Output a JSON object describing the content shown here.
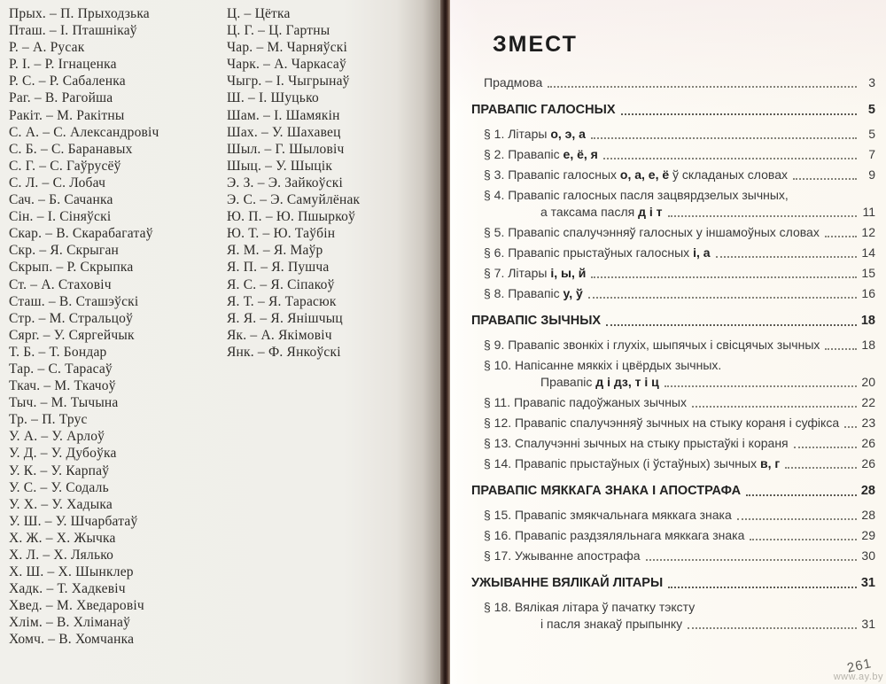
{
  "colors": {
    "paper_left": "#f0efea",
    "paper_right": "#fbf8f1",
    "gutter_dark": "#2a1b17",
    "text": "#2d2b28",
    "leader_dots": "#858379"
  },
  "watermark": "www.ay.by",
  "left_page": {
    "column1": [
      "Прых. – П. Прыходзька",
      "Пташ. – І. Пташнікаў",
      "Р. – А. Русак",
      "Р. І. – Р. Ігнаценка",
      "Р. С. – Р. Сабаленка",
      "Раг. – В. Рагойша",
      "Ракіт. – М. Ракітны",
      "С. А. – С. Александровіч",
      "С. Б. – С. Баранавых",
      "С. Г. – С. Гаўрусёў",
      "С. Л. – С. Лобач",
      "Сач. – Б. Сачанка",
      "Сін. – І. Сіняўскі",
      "Скар. – В. Скарабагатаў",
      "Скр. – Я. Скрыган",
      "Скрып. – Р. Скрыпка",
      "Ст. – А. Стаховіч",
      "Сташ. – В. Сташэўскі",
      "Стр. – М. Стральцоў",
      "Сярг. – У. Сяргейчык",
      "Т. Б. – Т. Бондар",
      "Тар. – С. Тарасаў",
      "Ткач. – М. Ткачоў",
      "Тыч. – М. Тычына",
      "Тр. – П. Трус",
      "У. А. – У. Арлоў",
      "У. Д. – У. Дубоўка",
      "У. К. – У. Карпаў",
      "У. С. – У. Содаль",
      "У. Х. – У. Хадыка",
      "У. Ш. – У. Шчарбатаў",
      "Х. Ж. – Х. Жычка",
      "Х. Л. – Х. Лялько",
      "Х. Ш. – Х. Шынклер",
      "Хадк. – Т. Хадкевіч",
      "Хвед. – М. Хведаровіч",
      "Хлім. – В. Хліманаў",
      "Хомч. – В. Хомчанка"
    ],
    "column2": [
      "Ц. – Цётка",
      "Ц. Г. – Ц. Гартны",
      "Чар. – М. Чарняўскі",
      "Чарк. – А. Чаркасаў",
      "Чыгр. – І. Чыгрынаў",
      "Ш. – І. Шуцько",
      "Шам. – І. Шамякін",
      "Шах. – У. Шахавец",
      "Шыл. – Г. Шыловіч",
      "Шыц. – У. Шыцік",
      "Э. З. – Э. Зайкоўскі",
      "Э. С. – Э. Самуйлёнак",
      "Ю. П. – Ю. Пшыркоў",
      "Ю. Т. – Ю. Таўбін",
      "Я. М. – Я. Маўр",
      "Я. П. – Я. Пушча",
      "Я. С. – Я. Сіпакоў",
      "Я. Т. – Я. Тарасюк",
      "Я. Я. – Я. Янішчыц",
      "Як. – А. Якімовіч",
      "Янк. – Ф. Янкоўскі"
    ]
  },
  "right_page": {
    "title": "ЗМЕСТ",
    "page_number": "261",
    "toc": [
      {
        "kind": "entry",
        "page": "3",
        "lines": [
          [
            {
              "t": "Прадмова",
              "b": false
            }
          ]
        ]
      },
      {
        "kind": "heading",
        "page": "5",
        "lines": [
          [
            {
              "t": "ПРАВАПІС ГАЛОСНЫХ",
              "b": true
            }
          ]
        ]
      },
      {
        "kind": "entry",
        "page": "5",
        "lines": [
          [
            {
              "t": "§ 1. Літары ",
              "b": false
            },
            {
              "t": "о, э, а",
              "b": true
            }
          ]
        ]
      },
      {
        "kind": "entry",
        "page": "7",
        "lines": [
          [
            {
              "t": "§ 2. Правапіс ",
              "b": false
            },
            {
              "t": "е, ё, я",
              "b": true
            }
          ]
        ]
      },
      {
        "kind": "entry",
        "page": "9",
        "lines": [
          [
            {
              "t": "§ 3. Правапіс галосных ",
              "b": false
            },
            {
              "t": "о, а, е, ё",
              "b": true
            },
            {
              "t": " ў складаных словах",
              "b": false
            }
          ]
        ]
      },
      {
        "kind": "entry",
        "page": "11",
        "lines": [
          [
            {
              "t": "§ 4. Правапіс галосных пасля зацвярдзелых зычных,",
              "b": false
            }
          ],
          [
            {
              "t": "а таксама пасля ",
              "b": false
            },
            {
              "t": "д і т",
              "b": true
            }
          ]
        ]
      },
      {
        "kind": "entry",
        "page": "12",
        "lines": [
          [
            {
              "t": "§ 5. Правапіс спалучэнняў галосных у іншамоўных словах",
              "b": false
            }
          ]
        ]
      },
      {
        "kind": "entry",
        "page": "14",
        "lines": [
          [
            {
              "t": "§ 6. Правапіс прыстаўных галосных ",
              "b": false
            },
            {
              "t": "і, а",
              "b": true
            }
          ]
        ]
      },
      {
        "kind": "entry",
        "page": "15",
        "lines": [
          [
            {
              "t": "§ 7. Літары ",
              "b": false
            },
            {
              "t": "і, ы, й",
              "b": true
            }
          ]
        ]
      },
      {
        "kind": "entry",
        "page": "16",
        "lines": [
          [
            {
              "t": "§ 8. Правапіс ",
              "b": false
            },
            {
              "t": "у, ў",
              "b": true
            }
          ]
        ]
      },
      {
        "kind": "heading",
        "page": "18",
        "lines": [
          [
            {
              "t": "ПРАВАПІС ЗЫЧНЫХ",
              "b": true
            }
          ]
        ]
      },
      {
        "kind": "entry",
        "page": "18",
        "lines": [
          [
            {
              "t": "§ 9. Правапіс звонкіх і глухіх, шыпячых і свісцячых зычных",
              "b": false
            }
          ]
        ]
      },
      {
        "kind": "entry",
        "page": "20",
        "lines": [
          [
            {
              "t": "§ 10. Напісанне мяккіх і цвёрдых зычных.",
              "b": false
            }
          ],
          [
            {
              "t": "Правапіс ",
              "b": false
            },
            {
              "t": "д і дз, т і ц",
              "b": true
            }
          ]
        ]
      },
      {
        "kind": "entry",
        "page": "22",
        "lines": [
          [
            {
              "t": "§ 11. Правапіс падоўжаных зычных",
              "b": false
            }
          ]
        ]
      },
      {
        "kind": "entry",
        "page": "23",
        "lines": [
          [
            {
              "t": "§ 12. Правапіс спалучэнняў зычных на стыку кораня і суфікса",
              "b": false
            }
          ]
        ]
      },
      {
        "kind": "entry",
        "page": "26",
        "lines": [
          [
            {
              "t": "§ 13. Спалучэнні зычных на стыку прыстаўкі і кораня",
              "b": false
            }
          ]
        ]
      },
      {
        "kind": "entry",
        "page": "26",
        "lines": [
          [
            {
              "t": "§ 14. Правапіс прыстаўных (і ўстаўных) зычных ",
              "b": false
            },
            {
              "t": "в, г",
              "b": true
            }
          ]
        ]
      },
      {
        "kind": "heading",
        "page": "28",
        "lines": [
          [
            {
              "t": "ПРАВАПІС МЯККАГА ЗНАКА І АПОСТРАФА",
              "b": true
            }
          ]
        ]
      },
      {
        "kind": "entry",
        "page": "28",
        "lines": [
          [
            {
              "t": "§ 15. Правапіс змякчальнага мяккага знака",
              "b": false
            }
          ]
        ]
      },
      {
        "kind": "entry",
        "page": "29",
        "lines": [
          [
            {
              "t": "§ 16. Правапіс раздзяляльнага мяккага знака",
              "b": false
            }
          ]
        ]
      },
      {
        "kind": "entry",
        "page": "30",
        "lines": [
          [
            {
              "t": "§ 17. Ужыванне апострафа",
              "b": false
            }
          ]
        ]
      },
      {
        "kind": "heading",
        "page": "31",
        "lines": [
          [
            {
              "t": "УЖЫВАННЕ ВЯЛІКАЙ ЛІТАРЫ",
              "b": true
            }
          ]
        ]
      },
      {
        "kind": "entry",
        "page": "31",
        "lines": [
          [
            {
              "t": "§ 18. Вялікая літара ў пачатку тэксту",
              "b": false
            }
          ],
          [
            {
              "t": "і пасля знакаў прыпынку",
              "b": false
            }
          ]
        ]
      }
    ]
  }
}
